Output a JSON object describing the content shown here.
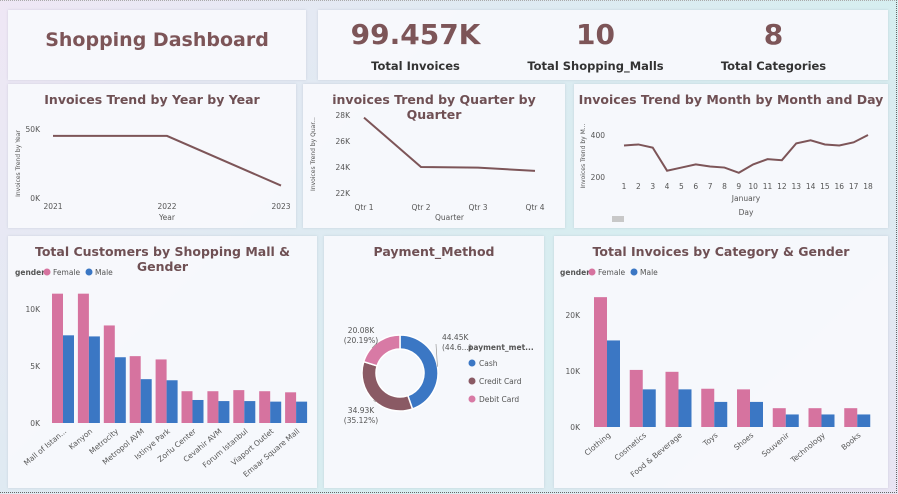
{
  "dashboard": {
    "title": "Shopping Dashboard"
  },
  "kpis": [
    {
      "value": "99.457K",
      "label": "Total Invoices"
    },
    {
      "value": "10",
      "label": "Total Shopping_Malls"
    },
    {
      "value": "8",
      "label": "Total Categories"
    }
  ],
  "colors": {
    "line": "#7d5558",
    "female": "#d6739f",
    "male": "#3b77c4",
    "cash": "#3b77c4",
    "credit": "#8a5a64",
    "debit": "#d87aa5"
  },
  "chart_data": [
    {
      "id": "year",
      "type": "line",
      "title": "Invoices Trend by Year by Year",
      "xlabel": "Year",
      "ylabel": "Invoices Trend by Year",
      "x": [
        "2021",
        "2022",
        "2023"
      ],
      "values": [
        45000,
        45000,
        9000
      ],
      "yticks": [
        "0K",
        "50K"
      ],
      "ylim": [
        0,
        50000
      ]
    },
    {
      "id": "quarter",
      "type": "line",
      "title": "invoices Trend by Quarter by Quarter",
      "xlabel": "Quarter",
      "ylabel": "Invoices Trend by Quar...",
      "x": [
        "Qtr 1",
        "Qtr 2",
        "Qtr 3",
        "Qtr 4"
      ],
      "values": [
        27800,
        24000,
        23950,
        23700
      ],
      "yticks": [
        "22K",
        "24K",
        "26K",
        "28K"
      ],
      "ylim": [
        22000,
        28000
      ]
    },
    {
      "id": "month",
      "type": "line",
      "title": "Invoices Trend by Month by Month and Day",
      "xlabel": "Day",
      "month_label": "January",
      "ylabel": "Invoices Trend by M...",
      "x": [
        "1",
        "2",
        "3",
        "4",
        "5",
        "6",
        "7",
        "8",
        "9",
        "10",
        "11",
        "12",
        "13",
        "14",
        "15",
        "16",
        "17",
        "18"
      ],
      "values": [
        350,
        355,
        340,
        230,
        245,
        260,
        250,
        245,
        220,
        260,
        285,
        280,
        360,
        375,
        355,
        350,
        365,
        400
      ],
      "yticks": [
        "200",
        "400"
      ],
      "ylim": [
        200,
        400
      ]
    },
    {
      "id": "mall",
      "type": "bar",
      "title": "Total Customers by Shopping Mall & Gender",
      "legend_title": "gender",
      "categories": [
        "Mall of Istan...",
        "Kanyon",
        "Metrocity",
        "Metropol AVM",
        "Istinye Park",
        "Zorlu Center",
        "Cevahir AVM",
        "Forum Istanbul",
        "Viaport Outlet",
        "Emaar Square Mall"
      ],
      "series": [
        {
          "name": "Female",
          "values": [
            11800,
            11800,
            8900,
            6100,
            5800,
            2900,
            2900,
            3000,
            2900,
            2800
          ]
        },
        {
          "name": "Male",
          "values": [
            8000,
            7900,
            6000,
            4000,
            3900,
            2100,
            2000,
            2000,
            1950,
            1950
          ]
        }
      ],
      "yticks": [
        "0K",
        "5K",
        "10K"
      ],
      "ylim": [
        0,
        12500
      ]
    },
    {
      "id": "payment",
      "type": "pie",
      "title": "Payment_Method",
      "legend_title": "payment_met...",
      "labels": [
        "Cash",
        "Credit Card",
        "Debit Card"
      ],
      "values": [
        44450,
        34930,
        20080
      ],
      "value_labels": [
        "44.45K",
        "34.93K",
        "20.08K"
      ],
      "percent_labels": [
        "(44.6...)",
        "(35.12%)",
        "(20.19%)"
      ]
    },
    {
      "id": "category",
      "type": "bar",
      "title": "Total Invoices by Category & Gender",
      "legend_title": "gender",
      "categories": [
        "Clothing",
        "Cosmetics",
        "Food & Beverage",
        "Toys",
        "Shoes",
        "Souvenir",
        "Technology",
        "Books"
      ],
      "series": [
        {
          "name": "Female",
          "values": [
            20700,
            9100,
            8800,
            6100,
            6000,
            3000,
            3000,
            3000
          ]
        },
        {
          "name": "Male",
          "values": [
            13800,
            6000,
            6000,
            4000,
            4000,
            2000,
            2000,
            2000
          ]
        }
      ],
      "yticks": [
        "0K",
        "10K",
        "20K"
      ],
      "ylim": [
        0,
        22000
      ]
    }
  ]
}
